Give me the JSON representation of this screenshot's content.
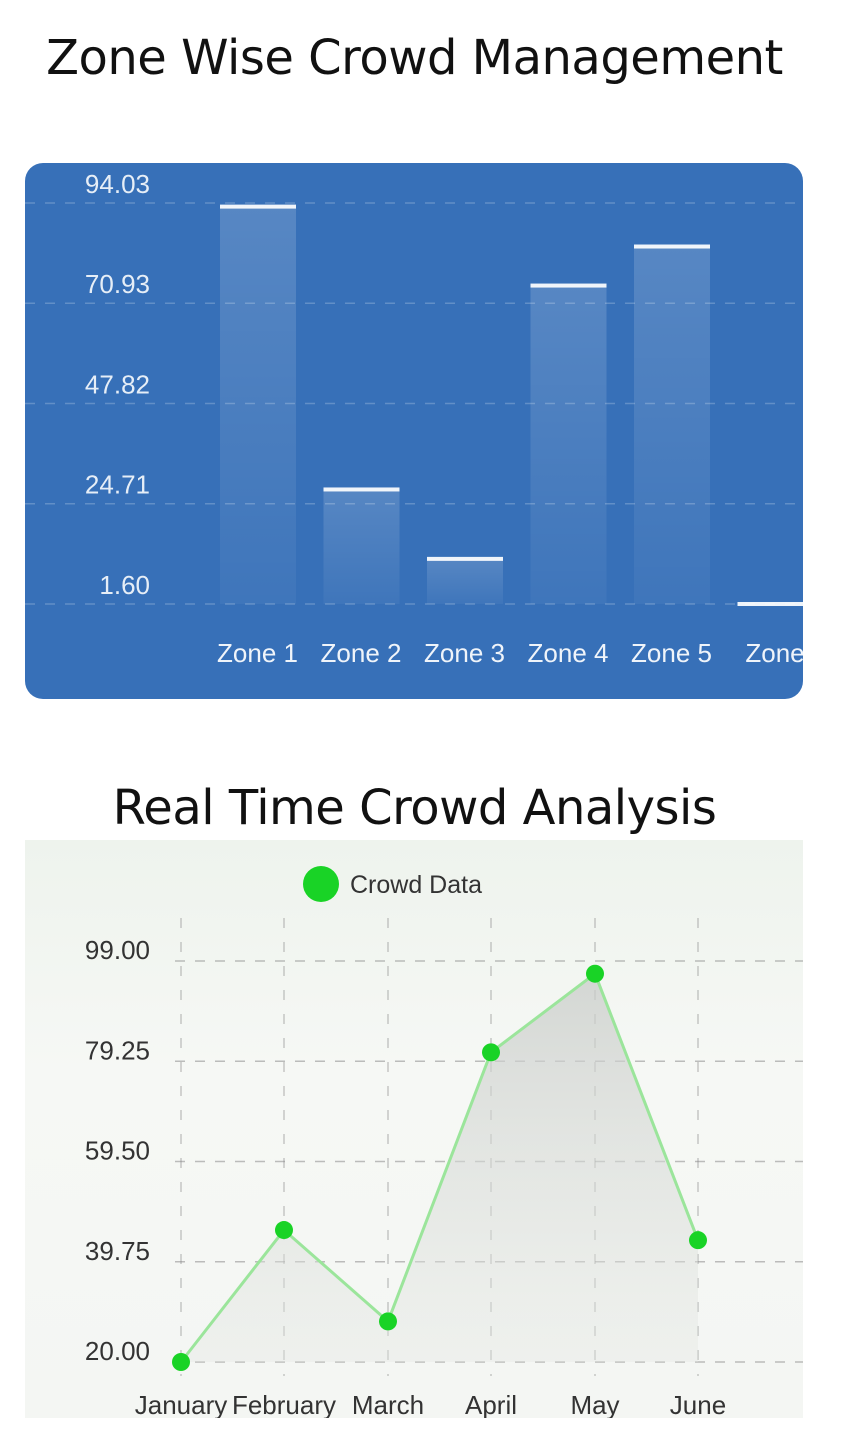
{
  "sections": {
    "zone_title": "Zone Wise Crowd Management",
    "realtime_title": "Real Time Crowd Analysis"
  },
  "colors": {
    "bar_card_bg": "#3770b8",
    "bar_fill": "#ffffff",
    "line_series": "#19d326",
    "line_stroke": "#9be59b"
  },
  "chart_data": [
    {
      "type": "bar",
      "title": "Zone Wise Crowd Management",
      "categories": [
        "Zone 1",
        "Zone 2",
        "Zone 3",
        "Zone 4",
        "Zone 5",
        "Zone"
      ],
      "values": [
        93.2,
        28.0,
        12.0,
        75.0,
        84.0,
        1.6
      ],
      "y_ticks": [
        "94.03",
        "70.93",
        "47.82",
        "24.71",
        "1.60"
      ],
      "ylim": [
        1.6,
        94.03
      ],
      "grid": true,
      "xlabel": "",
      "ylabel": ""
    },
    {
      "type": "line",
      "title": "Real Time Crowd Analysis",
      "categories": [
        "January",
        "February",
        "March",
        "April",
        "May",
        "June"
      ],
      "series": [
        {
          "name": "Crowd Data",
          "values": [
            20.0,
            46.0,
            28.0,
            81.0,
            96.5,
            44.0
          ]
        }
      ],
      "y_ticks": [
        "99.00",
        "79.25",
        "59.50",
        "39.75",
        "20.00"
      ],
      "ylim": [
        20.0,
        99.0
      ],
      "grid": true,
      "legend": "top-center",
      "xlabel": "",
      "ylabel": ""
    }
  ]
}
